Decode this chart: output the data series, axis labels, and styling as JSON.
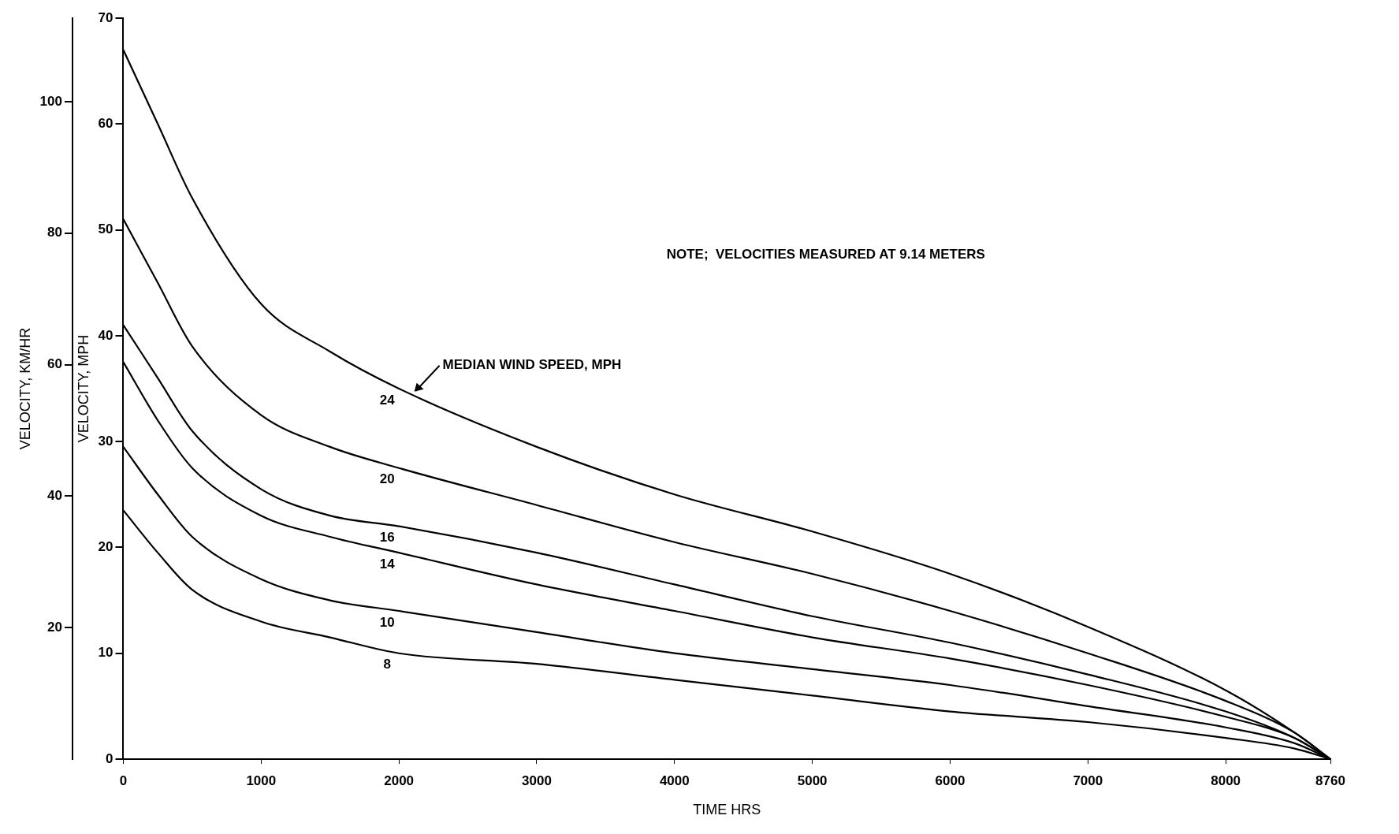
{
  "chart_data": {
    "type": "line",
    "xlabel": "TIME HRS",
    "ylabel": "VELOCITY, MPH",
    "y2label": "VELOCITY, KM/HR",
    "x": [
      0,
      250,
      500,
      1000,
      1500,
      2000,
      3000,
      4000,
      5000,
      6000,
      7000,
      8000,
      8500,
      8760
    ],
    "xlim": [
      0,
      8760
    ],
    "xticks": [
      0,
      1000,
      2000,
      3000,
      4000,
      5000,
      6000,
      7000,
      8000,
      8760
    ],
    "ylim": [
      0,
      70
    ],
    "yticks": [
      0,
      10,
      20,
      30,
      40,
      50,
      60,
      70
    ],
    "y2lim": [
      0,
      112.7
    ],
    "y2ticks": [
      20,
      40,
      60,
      80,
      100
    ],
    "grid": false,
    "legend": false,
    "marker": "none",
    "line_style": "solid",
    "series": [
      {
        "name": "24",
        "color": "#000000",
        "values": [
          67,
          60,
          53,
          43,
          38.5,
          35,
          29.5,
          25,
          21.5,
          17.5,
          12.5,
          6.5,
          2.5,
          0
        ]
      },
      {
        "name": "20",
        "color": "#000000",
        "values": [
          51,
          45,
          39,
          32.5,
          29.5,
          27.5,
          24,
          20.5,
          17.5,
          14,
          10,
          5.5,
          2.5,
          0
        ]
      },
      {
        "name": "16",
        "color": "#000000",
        "values": [
          41,
          36,
          31,
          25.5,
          23,
          22,
          19.5,
          16.5,
          13.5,
          11,
          8,
          4.5,
          2,
          0
        ]
      },
      {
        "name": "14",
        "color": "#000000",
        "values": [
          37.5,
          32,
          27.5,
          23,
          21,
          19.5,
          16.5,
          14,
          11.5,
          9.5,
          7,
          4,
          2,
          0
        ]
      },
      {
        "name": "10",
        "color": "#000000",
        "values": [
          29.5,
          25,
          21,
          17,
          15,
          14,
          12,
          10,
          8.5,
          7,
          5,
          3,
          1.5,
          0
        ]
      },
      {
        "name": "8",
        "color": "#000000",
        "values": [
          23.5,
          19.5,
          16,
          13,
          11.5,
          10,
          9,
          7.5,
          6,
          4.5,
          3.5,
          2,
          1,
          0
        ]
      }
    ],
    "annotations": [
      "NOTE;  VELOCITIES MEASURED AT 9.14 METERS",
      {
        "text": "MEDIAN WIND SPEED, MPH",
        "x": 2100,
        "y": 34.5
      }
    ]
  }
}
